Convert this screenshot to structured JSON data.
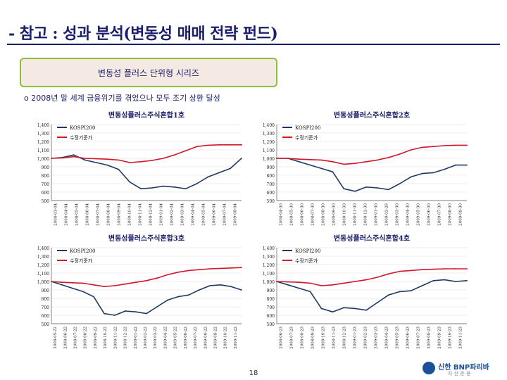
{
  "page": {
    "title": "- 참고 : 성과 분석(변동성 매매 전략 펀드)",
    "series_box": "변동성 플러스 단위형 시리즈",
    "summary": "o 2008년 말 세계 금융위기를 겪었으나 모두 조기 상환 달성",
    "page_number": "18",
    "logo_text": "신한 BNP파리바",
    "logo_subtext": "자 산 운 용",
    "colors": {
      "title": "#1a1f6b",
      "kospi": "#1f3b63",
      "fund": "#d0182a",
      "box_border": "#8fbf3a",
      "box_fill": "#f5e9e4"
    }
  },
  "chart_data": [
    {
      "type": "line",
      "title": "변동성플러스주식혼합1호",
      "y_ticks": [
        "1,400",
        "1,300",
        "1,200",
        "1,100",
        "1,000",
        "900",
        "800",
        "700",
        "600",
        "500"
      ],
      "ylim": [
        500,
        1400
      ],
      "x_ticks": [
        "2008-03-04",
        "2008-04-04",
        "2008-05-04",
        "2008-06-04",
        "2008-07-04",
        "2008-08-04",
        "2008-09-04",
        "2008-10-04",
        "2008-11-04",
        "2008-12-04",
        "2009-01-04",
        "2009-02-04",
        "2009-03-04",
        "2009-04-04",
        "2009-05-04",
        "2009-06-04",
        "2009-07-04",
        "2009-08-04"
      ],
      "legend": "top-left",
      "series": [
        {
          "name": "KOSPI200",
          "color": "#1f3b63",
          "values": [
            1000,
            1010,
            1040,
            980,
            950,
            920,
            870,
            720,
            640,
            650,
            670,
            660,
            640,
            700,
            780,
            830,
            880,
            1000
          ]
        },
        {
          "name": "수정기준가",
          "color": "#d0182a",
          "values": [
            1000,
            1005,
            1020,
            1000,
            995,
            990,
            980,
            950,
            960,
            975,
            1000,
            1040,
            1090,
            1140,
            1155,
            1160,
            1160,
            1160
          ]
        }
      ]
    },
    {
      "type": "line",
      "title": "변동성플러스주식혼합2호",
      "y_ticks": [
        "1,400",
        "1,300",
        "1,200",
        "1,100",
        "1,000",
        "900",
        "800",
        "700",
        "600",
        "500"
      ],
      "ylim": [
        500,
        1400
      ],
      "x_ticks": [
        "2008-04-30",
        "2008-05-30",
        "2008-06-30",
        "2008-07-30",
        "2008-08-30",
        "2008-09-30",
        "2008-10-30",
        "2008-11-30",
        "2008-12-30",
        "2009-01-30",
        "2009-02-28",
        "2009-03-30",
        "2009-04-30",
        "2009-05-30",
        "2009-06-30",
        "2009-07-30",
        "2009-08-30",
        "2009-09-30"
      ],
      "legend": "top-left",
      "series": [
        {
          "name": "KOSPI200",
          "color": "#1f3b63",
          "values": [
            1000,
            1000,
            960,
            920,
            880,
            840,
            640,
            610,
            660,
            650,
            630,
            700,
            780,
            820,
            830,
            870,
            920,
            920
          ]
        },
        {
          "name": "수정기준가",
          "color": "#d0182a",
          "values": [
            1000,
            1000,
            990,
            985,
            980,
            960,
            930,
            940,
            960,
            980,
            1010,
            1050,
            1100,
            1130,
            1140,
            1150,
            1155,
            1155
          ]
        }
      ]
    },
    {
      "type": "line",
      "title": "변동성플러스주식혼합3호",
      "y_ticks": [
        "1,400",
        "1,300",
        "1,200",
        "1,100",
        "1,000",
        "900",
        "800",
        "700",
        "600",
        "500"
      ],
      "ylim": [
        500,
        1400
      ],
      "x_ticks": [
        "2008-05-22",
        "2008-06-22",
        "2008-07-22",
        "2008-08-22",
        "2008-09-22",
        "2008-10-22",
        "2008-11-22",
        "2008-12-22",
        "2009-01-22",
        "2009-02-22",
        "2009-03-22",
        "2009-04-22",
        "2009-05-22",
        "2009-06-22",
        "2009-07-22",
        "2009-08-22",
        "2009-09-22",
        "2009-10-22",
        "2009-11-22"
      ],
      "legend": "top-left",
      "series": [
        {
          "name": "KOSPI200",
          "color": "#1f3b63",
          "values": [
            1000,
            960,
            920,
            880,
            820,
            620,
            600,
            650,
            640,
            620,
            700,
            780,
            820,
            840,
            900,
            950,
            960,
            940,
            900
          ]
        },
        {
          "name": "수정기준가",
          "color": "#d0182a",
          "values": [
            1000,
            990,
            985,
            980,
            960,
            940,
            950,
            970,
            990,
            1010,
            1040,
            1080,
            1110,
            1130,
            1140,
            1150,
            1155,
            1160,
            1165
          ]
        }
      ]
    },
    {
      "type": "line",
      "title": "변동성플러스주식혼합4호",
      "y_ticks": [
        "1,400",
        "1,300",
        "1,200",
        "1,100",
        "1,000",
        "900",
        "800",
        "700",
        "600",
        "500"
      ],
      "ylim": [
        500,
        1400
      ],
      "x_ticks": [
        "2008-06-23",
        "2008-07-23",
        "2008-08-23",
        "2008-09-23",
        "2008-10-23",
        "2008-11-23",
        "2008-12-23",
        "2009-01-23",
        "2009-02-23",
        "2009-03-23",
        "2009-04-23",
        "2009-05-23",
        "2009-06-23",
        "2009-07-23",
        "2009-08-23",
        "2009-09-23",
        "2009-10-23",
        "2009-11-23"
      ],
      "legend": "top-left",
      "series": [
        {
          "name": "KOSPI200",
          "color": "#1f3b63",
          "values": [
            1000,
            960,
            920,
            880,
            680,
            640,
            690,
            680,
            660,
            750,
            840,
            880,
            890,
            950,
            1010,
            1020,
            1000,
            1010
          ]
        },
        {
          "name": "수정기준가",
          "color": "#d0182a",
          "values": [
            1000,
            995,
            990,
            980,
            950,
            960,
            980,
            1000,
            1020,
            1050,
            1090,
            1120,
            1130,
            1140,
            1145,
            1150,
            1150,
            1150
          ]
        }
      ]
    }
  ]
}
